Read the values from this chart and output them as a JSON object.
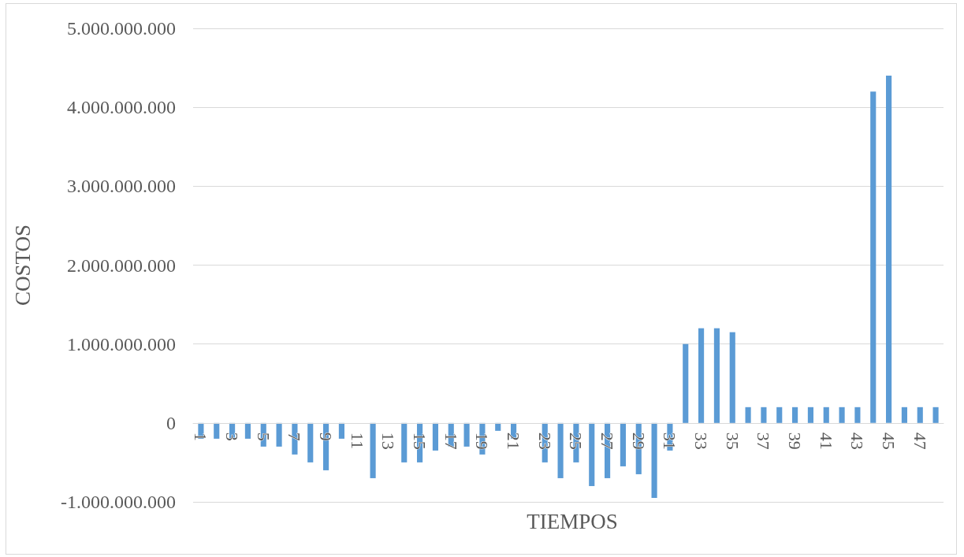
{
  "chart_data": {
    "type": "bar",
    "xlabel": "TIEMPOS",
    "ylabel": "COSTOS",
    "categories": [
      "1",
      null,
      "3",
      null,
      "5",
      null,
      "7",
      null,
      "9",
      null,
      "11",
      null,
      "13",
      null,
      "15",
      null,
      "17",
      null,
      "19",
      null,
      "21",
      null,
      "23",
      null,
      "25",
      null,
      "27",
      null,
      "29",
      null,
      "31",
      null,
      "33",
      null,
      "35",
      null,
      "37",
      null,
      "39",
      null,
      "41",
      null,
      "43",
      null,
      "45",
      null,
      "47",
      null
    ],
    "values": [
      -200000000,
      -200000000,
      -200000000,
      -200000000,
      -300000000,
      -300000000,
      -400000000,
      -500000000,
      -600000000,
      -200000000,
      0,
      -700000000,
      0,
      -500000000,
      -500000000,
      -350000000,
      -300000000,
      -300000000,
      -400000000,
      -100000000,
      -200000000,
      0,
      -500000000,
      -700000000,
      -500000000,
      -800000000,
      -700000000,
      -550000000,
      -650000000,
      -950000000,
      -350000000,
      1000000000,
      1200000000,
      1200000000,
      1150000000,
      200000000,
      200000000,
      200000000,
      200000000,
      200000000,
      200000000,
      200000000,
      200000000,
      4200000000,
      4400000000,
      200000000,
      200000000,
      200000000
    ],
    "color": "#5b9bd5",
    "ylim": [
      -1000000000,
      5000000000
    ],
    "yticks": [
      {
        "value": -1000000000,
        "label": "-1.000.000.000"
      },
      {
        "value": 0,
        "label": "0"
      },
      {
        "value": 1000000000,
        "label": "1.000.000.000"
      },
      {
        "value": 2000000000,
        "label": "2.000.000.000"
      },
      {
        "value": 3000000000,
        "label": "3.000.000.000"
      },
      {
        "value": 4000000000,
        "label": "4.000.000.000"
      },
      {
        "value": 5000000000,
        "label": "5.000.000.000"
      }
    ],
    "grid": "y"
  }
}
